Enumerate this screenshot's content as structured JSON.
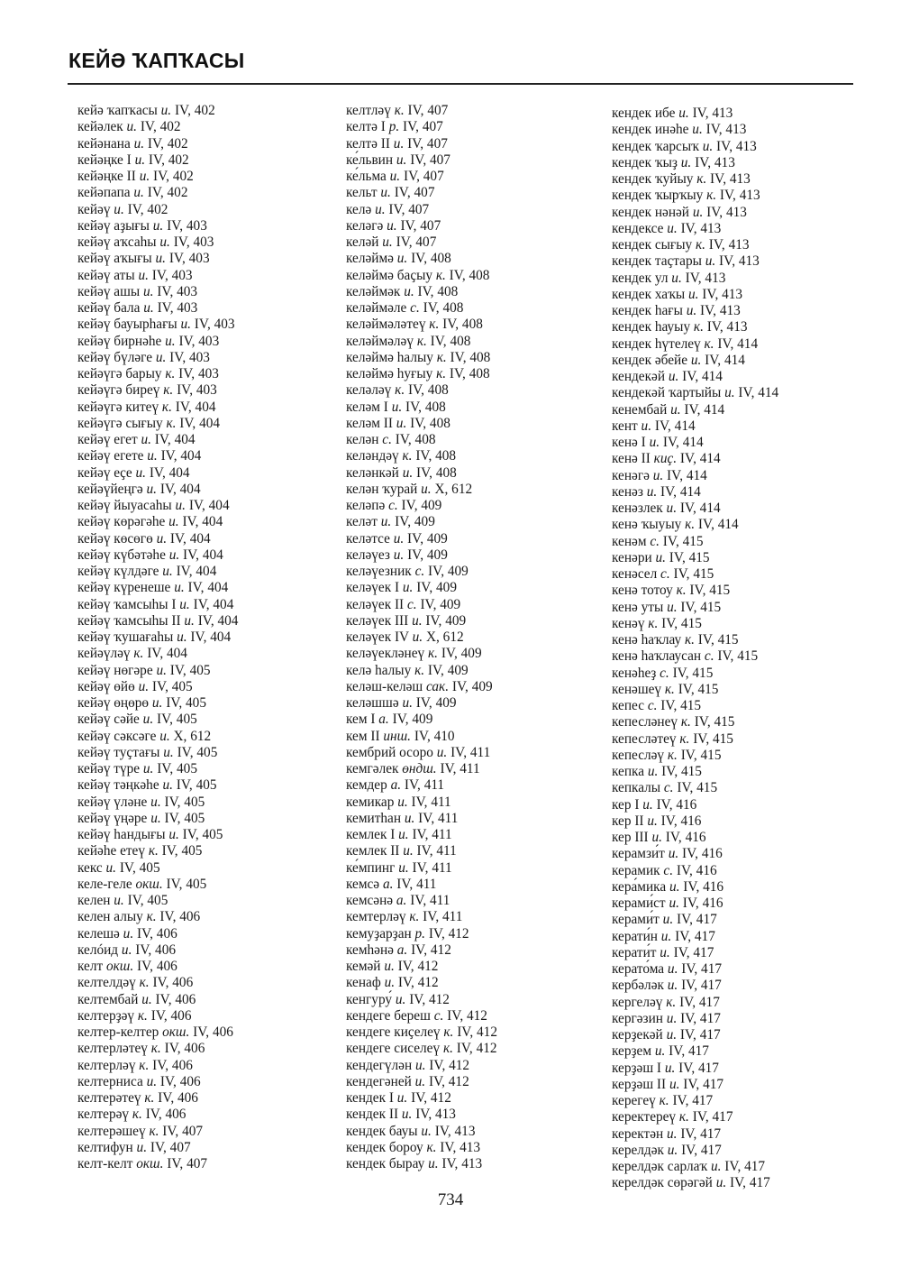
{
  "header": {
    "title": "КЕЙӘ ҠАПҠАСЫ"
  },
  "page_number": "734",
  "columns": [
    [
      [
        "кейә ҡапҡасы",
        "и.",
        "IV, 402"
      ],
      [
        "кейәлек",
        "и.",
        "IV, 402"
      ],
      [
        "кейәнана",
        "и.",
        "IV, 402"
      ],
      [
        "кейәңке I",
        "и.",
        "IV, 402"
      ],
      [
        "кейәңке II",
        "и.",
        "IV, 402"
      ],
      [
        "кейәпапа",
        "и.",
        "IV, 402"
      ],
      [
        "кейәү",
        "и.",
        "IV, 402"
      ],
      [
        "кейәү аҙығы",
        "и.",
        "IV, 403"
      ],
      [
        "кейәү аҡсаһы",
        "и.",
        "IV, 403"
      ],
      [
        "кейәү аҡығы",
        "и.",
        "IV, 403"
      ],
      [
        "кейәү аты",
        "и.",
        "IV, 403"
      ],
      [
        "кейәү ашы",
        "и.",
        "IV, 403"
      ],
      [
        "кейәү бала",
        "и.",
        "IV, 403"
      ],
      [
        "кейәү бауырһағы",
        "и.",
        "IV, 403"
      ],
      [
        "кейәү бирнәһе",
        "и.",
        "IV, 403"
      ],
      [
        "кейәү бүләге",
        "и.",
        "IV, 403"
      ],
      [
        "кейәүгә барыу",
        "к.",
        "IV, 403"
      ],
      [
        "кейәүгә биреү",
        "к.",
        "IV, 403"
      ],
      [
        "кейәүгә китеү",
        "к.",
        "IV, 404"
      ],
      [
        "кейәүгә сығыу",
        "к.",
        "IV, 404"
      ],
      [
        "кейәү егет",
        "и.",
        "IV, 404"
      ],
      [
        "кейәү егете",
        "и.",
        "IV, 404"
      ],
      [
        "кейәү еҫе",
        "и.",
        "IV, 404"
      ],
      [
        "кейәүйеңгә",
        "и.",
        "IV, 404"
      ],
      [
        "кейәү йыуасаһы",
        "и.",
        "IV, 404"
      ],
      [
        "кейәү көрәгәһе",
        "и.",
        "IV, 404"
      ],
      [
        "кейәү көсөгө",
        "и.",
        "IV, 404"
      ],
      [
        "кейәү күбәтәһе",
        "и.",
        "IV, 404"
      ],
      [
        "кейәү күлдәге",
        "и.",
        "IV, 404"
      ],
      [
        "кейәү күренеше",
        "и.",
        "IV, 404"
      ],
      [
        "кейәү ҡамсыһы I",
        "и.",
        "IV, 404"
      ],
      [
        "кейәү ҡамсыһы II",
        "и.",
        "IV, 404"
      ],
      [
        "кейәү ҡушағаһы",
        "и.",
        "IV, 404"
      ],
      [
        "кейәүләү",
        "к.",
        "IV, 404"
      ],
      [
        "кейәү нөгәре",
        "и.",
        "IV, 405"
      ],
      [
        "кейәү өйө",
        "и.",
        "IV, 405"
      ],
      [
        "кейәү өңөрө",
        "и.",
        "IV, 405"
      ],
      [
        "кейәү сәйе",
        "и.",
        "IV, 405"
      ],
      [
        "кейәү сәксәге",
        "и.",
        "X, 612"
      ],
      [
        "кейәү туҫтағы",
        "и.",
        "IV, 405"
      ],
      [
        "кейәү түре",
        "и.",
        "IV, 405"
      ],
      [
        "кейәү тәңкәһе",
        "и.",
        "IV, 405"
      ],
      [
        "кейәү үләне",
        "и.",
        "IV, 405"
      ],
      [
        "кейәү үңәре",
        "и.",
        "IV, 405"
      ],
      [
        "кейәү һандығы",
        "и.",
        "IV, 405"
      ],
      [
        "кейәһе етеү",
        "к.",
        "IV, 405"
      ],
      [
        "кекс",
        "и.",
        "IV, 405"
      ],
      [
        "келе-геле",
        "окш.",
        "IV, 405"
      ],
      [
        "келен",
        "и.",
        "IV, 405"
      ],
      [
        "келен алыу",
        "к.",
        "IV, 406"
      ],
      [
        "келешә",
        "и.",
        "IV, 406"
      ],
      [
        "келóид",
        "и.",
        "IV, 406"
      ],
      [
        "келт",
        "окш.",
        "IV, 406"
      ],
      [
        "келтелдәү",
        "к.",
        "IV, 406"
      ],
      [
        "келтембай",
        "и.",
        "IV, 406"
      ],
      [
        "келтерҙәү",
        "к.",
        "IV, 406"
      ],
      [
        "келтер-келтер",
        "окш.",
        "IV, 406"
      ],
      [
        "келтерләтеү",
        "к.",
        "IV, 406"
      ],
      [
        "келтерләү",
        "к.",
        "IV, 406"
      ],
      [
        "келтерниса",
        "и.",
        "IV, 406"
      ],
      [
        "келтерәтеү",
        "к.",
        "IV, 406"
      ],
      [
        "келтерәү",
        "к.",
        "IV, 406"
      ],
      [
        "келтерәшеү",
        "к.",
        "IV, 407"
      ],
      [
        "келтифун",
        "и.",
        "IV, 407"
      ],
      [
        "келт-келт",
        "окш.",
        "IV, 407"
      ]
    ],
    [
      [
        "келтләү",
        "к.",
        "IV, 407"
      ],
      [
        "келтә I",
        "р.",
        "IV, 407"
      ],
      [
        "келтә II",
        "и.",
        "IV, 407"
      ],
      [
        "ке́львин",
        "и.",
        "IV, 407"
      ],
      [
        "ке́льма",
        "и.",
        "IV, 407"
      ],
      [
        "кельт",
        "и.",
        "IV, 407"
      ],
      [
        "келә",
        "и.",
        "IV, 407"
      ],
      [
        "келәгә",
        "и.",
        "IV, 407"
      ],
      [
        "келәй",
        "и.",
        "IV, 407"
      ],
      [
        "келәймә",
        "и.",
        "IV, 408"
      ],
      [
        "келәймә баҫыу",
        "к.",
        "IV, 408"
      ],
      [
        "келәймәк",
        "и.",
        "IV, 408"
      ],
      [
        "келәймәле",
        "с.",
        "IV, 408"
      ],
      [
        "келәймәләтеү",
        "к.",
        "IV, 408"
      ],
      [
        "келәймәләү",
        "к.",
        "IV, 408"
      ],
      [
        "келәймә һалыу",
        "к.",
        "IV, 408"
      ],
      [
        "келәймә һуғыу",
        "к.",
        "IV, 408"
      ],
      [
        "келәләү",
        "к.",
        "IV, 408"
      ],
      [
        "келәм I",
        "и.",
        "IV, 408"
      ],
      [
        "келәм II",
        "и.",
        "IV, 408"
      ],
      [
        "келән",
        "с.",
        "IV, 408"
      ],
      [
        "келәндәү",
        "к.",
        "IV, 408"
      ],
      [
        "келәнкәй",
        "и.",
        "IV, 408"
      ],
      [
        "келән ҡурай",
        "и.",
        "X, 612"
      ],
      [
        "келәпә",
        "с.",
        "IV, 409"
      ],
      [
        "келәт",
        "и.",
        "IV, 409"
      ],
      [
        "келәтсе",
        "и.",
        "IV, 409"
      ],
      [
        "келәүез",
        "и.",
        "IV, 409"
      ],
      [
        "келәүезник",
        "с.",
        "IV, 409"
      ],
      [
        "келәүек I",
        "и.",
        "IV, 409"
      ],
      [
        "келәүек II",
        "с.",
        "IV, 409"
      ],
      [
        "келәүек III",
        "и.",
        "IV, 409"
      ],
      [
        "келәүек IV",
        "и.",
        "X, 612"
      ],
      [
        "келәүекләнеү",
        "к.",
        "IV, 409"
      ],
      [
        "келә һалыу",
        "к.",
        "IV, 409"
      ],
      [
        "келәш-келәш",
        "сак.",
        "IV, 409"
      ],
      [
        "келәшшә",
        "и.",
        "IV, 409"
      ],
      [
        "кем I",
        "а.",
        "IV, 409"
      ],
      [
        "кем II",
        "инш.",
        "IV, 410"
      ],
      [
        "кембрий осоро",
        "и.",
        "IV, 411"
      ],
      [
        "кемгәлек",
        "өндш.",
        "IV, 411"
      ],
      [
        "кемдер",
        "а.",
        "IV, 411"
      ],
      [
        "кемикар",
        "и.",
        "IV, 411"
      ],
      [
        "кемитһан",
        "и.",
        "IV, 411"
      ],
      [
        "кемлек I",
        "и.",
        "IV, 411"
      ],
      [
        "кемлек II",
        "и.",
        "IV, 411"
      ],
      [
        "ке́мпинг",
        "и.",
        "IV, 411"
      ],
      [
        "кемсә",
        "а.",
        "IV, 411"
      ],
      [
        "кемсәнә",
        "а.",
        "IV, 411"
      ],
      [
        "кемтерләү",
        "к.",
        "IV, 411"
      ],
      [
        "кемуҙарҙан",
        "р.",
        "IV, 412"
      ],
      [
        "кемһәнә",
        "а.",
        "IV, 412"
      ],
      [
        "кемәй",
        "и.",
        "IV, 412"
      ],
      [
        "кенаф",
        "и.",
        "IV, 412"
      ],
      [
        "кенгуру́",
        "и.",
        "IV, 412"
      ],
      [
        "кендеге береш",
        "с.",
        "IV, 412"
      ],
      [
        "кендеге киҫелеү",
        "к.",
        "IV, 412"
      ],
      [
        "кендеге сиселеү",
        "к.",
        "IV, 412"
      ],
      [
        "кендегүлән",
        "и.",
        "IV, 412"
      ],
      [
        "кендегәней",
        "и.",
        "IV, 412"
      ],
      [
        "кендек I",
        "и.",
        "IV, 412"
      ],
      [
        "кендек II",
        "и.",
        "IV, 413"
      ],
      [
        "кендек бауы",
        "и.",
        "IV, 413"
      ],
      [
        "кендек бороу",
        "к.",
        "IV, 413"
      ],
      [
        "кендек бырау",
        "и.",
        "IV, 413"
      ]
    ],
    [
      [
        "кендек ибе",
        "и.",
        "IV, 413"
      ],
      [
        "кендек инәһе",
        "и.",
        "IV, 413"
      ],
      [
        "кендек ҡарсыҡ",
        "и.",
        "IV, 413"
      ],
      [
        "кендек ҡыҙ",
        "и.",
        "IV, 413"
      ],
      [
        "кендек ҡуйыу",
        "к.",
        "IV, 413"
      ],
      [
        "кендек ҡырҡыу",
        "к.",
        "IV, 413"
      ],
      [
        "кендек нәнәй",
        "и.",
        "IV, 413"
      ],
      [
        "кендексе",
        "и.",
        "IV, 413"
      ],
      [
        "кендек сығыу",
        "к.",
        "IV, 413"
      ],
      [
        "кендек таҫтары",
        "и.",
        "IV, 413"
      ],
      [
        "кендек ул",
        "и.",
        "IV, 413"
      ],
      [
        "кендек хаҡы",
        "и.",
        "IV, 413"
      ],
      [
        "кендек һағы",
        "и.",
        "IV, 413"
      ],
      [
        "кендек һауыу",
        "к.",
        "IV, 413"
      ],
      [
        "кендек һүтелеү",
        "к.",
        "IV, 414"
      ],
      [
        "кендек әбейе",
        "и.",
        "IV, 414"
      ],
      [
        "кендекәй",
        "и.",
        "IV, 414"
      ],
      [
        "кендекәй ҡартыйы",
        "и.",
        "IV, 414"
      ],
      [
        "кенембай",
        "и.",
        "IV, 414"
      ],
      [
        "кент",
        "и.",
        "IV, 414"
      ],
      [
        "кенә I",
        "и.",
        "IV, 414"
      ],
      [
        "кенә II",
        "киҫ.",
        "IV, 414"
      ],
      [
        "кенәгә",
        "и.",
        "IV, 414"
      ],
      [
        "кенәз",
        "и.",
        "IV, 414"
      ],
      [
        "кенәзлек",
        "и.",
        "IV, 414"
      ],
      [
        "кенә ҡыуыу",
        "к.",
        "IV, 414"
      ],
      [
        "кенәм",
        "с.",
        "IV, 415"
      ],
      [
        "кенәри",
        "и.",
        "IV, 415"
      ],
      [
        "кенәсел",
        "с.",
        "IV, 415"
      ],
      [
        "кенә тотоу",
        "к.",
        "IV, 415"
      ],
      [
        "кенә уты",
        "и.",
        "IV, 415"
      ],
      [
        "кенәү",
        "к.",
        "IV, 415"
      ],
      [
        "кенә һаҡлау",
        "к.",
        "IV, 415"
      ],
      [
        "кенә һаҡлаусан",
        "с.",
        "IV, 415"
      ],
      [
        "кенәһеҙ",
        "с.",
        "IV, 415"
      ],
      [
        "кенәшеү",
        "к.",
        "IV, 415"
      ],
      [
        "кепес",
        "с.",
        "IV, 415"
      ],
      [
        "кепесләнеү",
        "к.",
        "IV, 415"
      ],
      [
        "кепесләтеү",
        "к.",
        "IV, 415"
      ],
      [
        "кепесләү",
        "к.",
        "IV, 415"
      ],
      [
        "кепка",
        "и.",
        "IV, 415"
      ],
      [
        "кепкалы",
        "с.",
        "IV, 415"
      ],
      [
        "кер I",
        "и.",
        "IV, 416"
      ],
      [
        "кер II",
        "и.",
        "IV, 416"
      ],
      [
        "кер III",
        "и.",
        "IV, 416"
      ],
      [
        "керамзи́т",
        "и.",
        "IV, 416"
      ],
      [
        "керамик",
        "с.",
        "IV, 416"
      ],
      [
        "кера́мика",
        "и.",
        "IV, 416"
      ],
      [
        "керами́ст",
        "и.",
        "IV, 416"
      ],
      [
        "керами́т",
        "и.",
        "IV, 417"
      ],
      [
        "керати́н",
        "и.",
        "IV, 417"
      ],
      [
        "керати́т",
        "и.",
        "IV, 417"
      ],
      [
        "керато́ма",
        "и.",
        "IV, 417"
      ],
      [
        "кербәләк",
        "и.",
        "IV, 417"
      ],
      [
        "кергеләү",
        "к.",
        "IV, 417"
      ],
      [
        "кергәзин",
        "и.",
        "IV, 417"
      ],
      [
        "керҙекәй",
        "и.",
        "IV, 417"
      ],
      [
        "керҙем",
        "и.",
        "IV, 417"
      ],
      [
        "керҙәш I",
        "и.",
        "IV, 417"
      ],
      [
        "керҙәш II",
        "и.",
        "IV, 417"
      ],
      [
        "керегеү",
        "к.",
        "IV, 417"
      ],
      [
        "керектереү",
        "к.",
        "IV, 417"
      ],
      [
        "керектән",
        "и.",
        "IV, 417"
      ],
      [
        "керелдәк",
        "и.",
        "IV, 417"
      ],
      [
        "керелдәк сарлаҡ",
        "и.",
        "IV, 417"
      ],
      [
        "керелдәк сөрәгәй",
        "и.",
        "IV, 417"
      ]
    ]
  ]
}
